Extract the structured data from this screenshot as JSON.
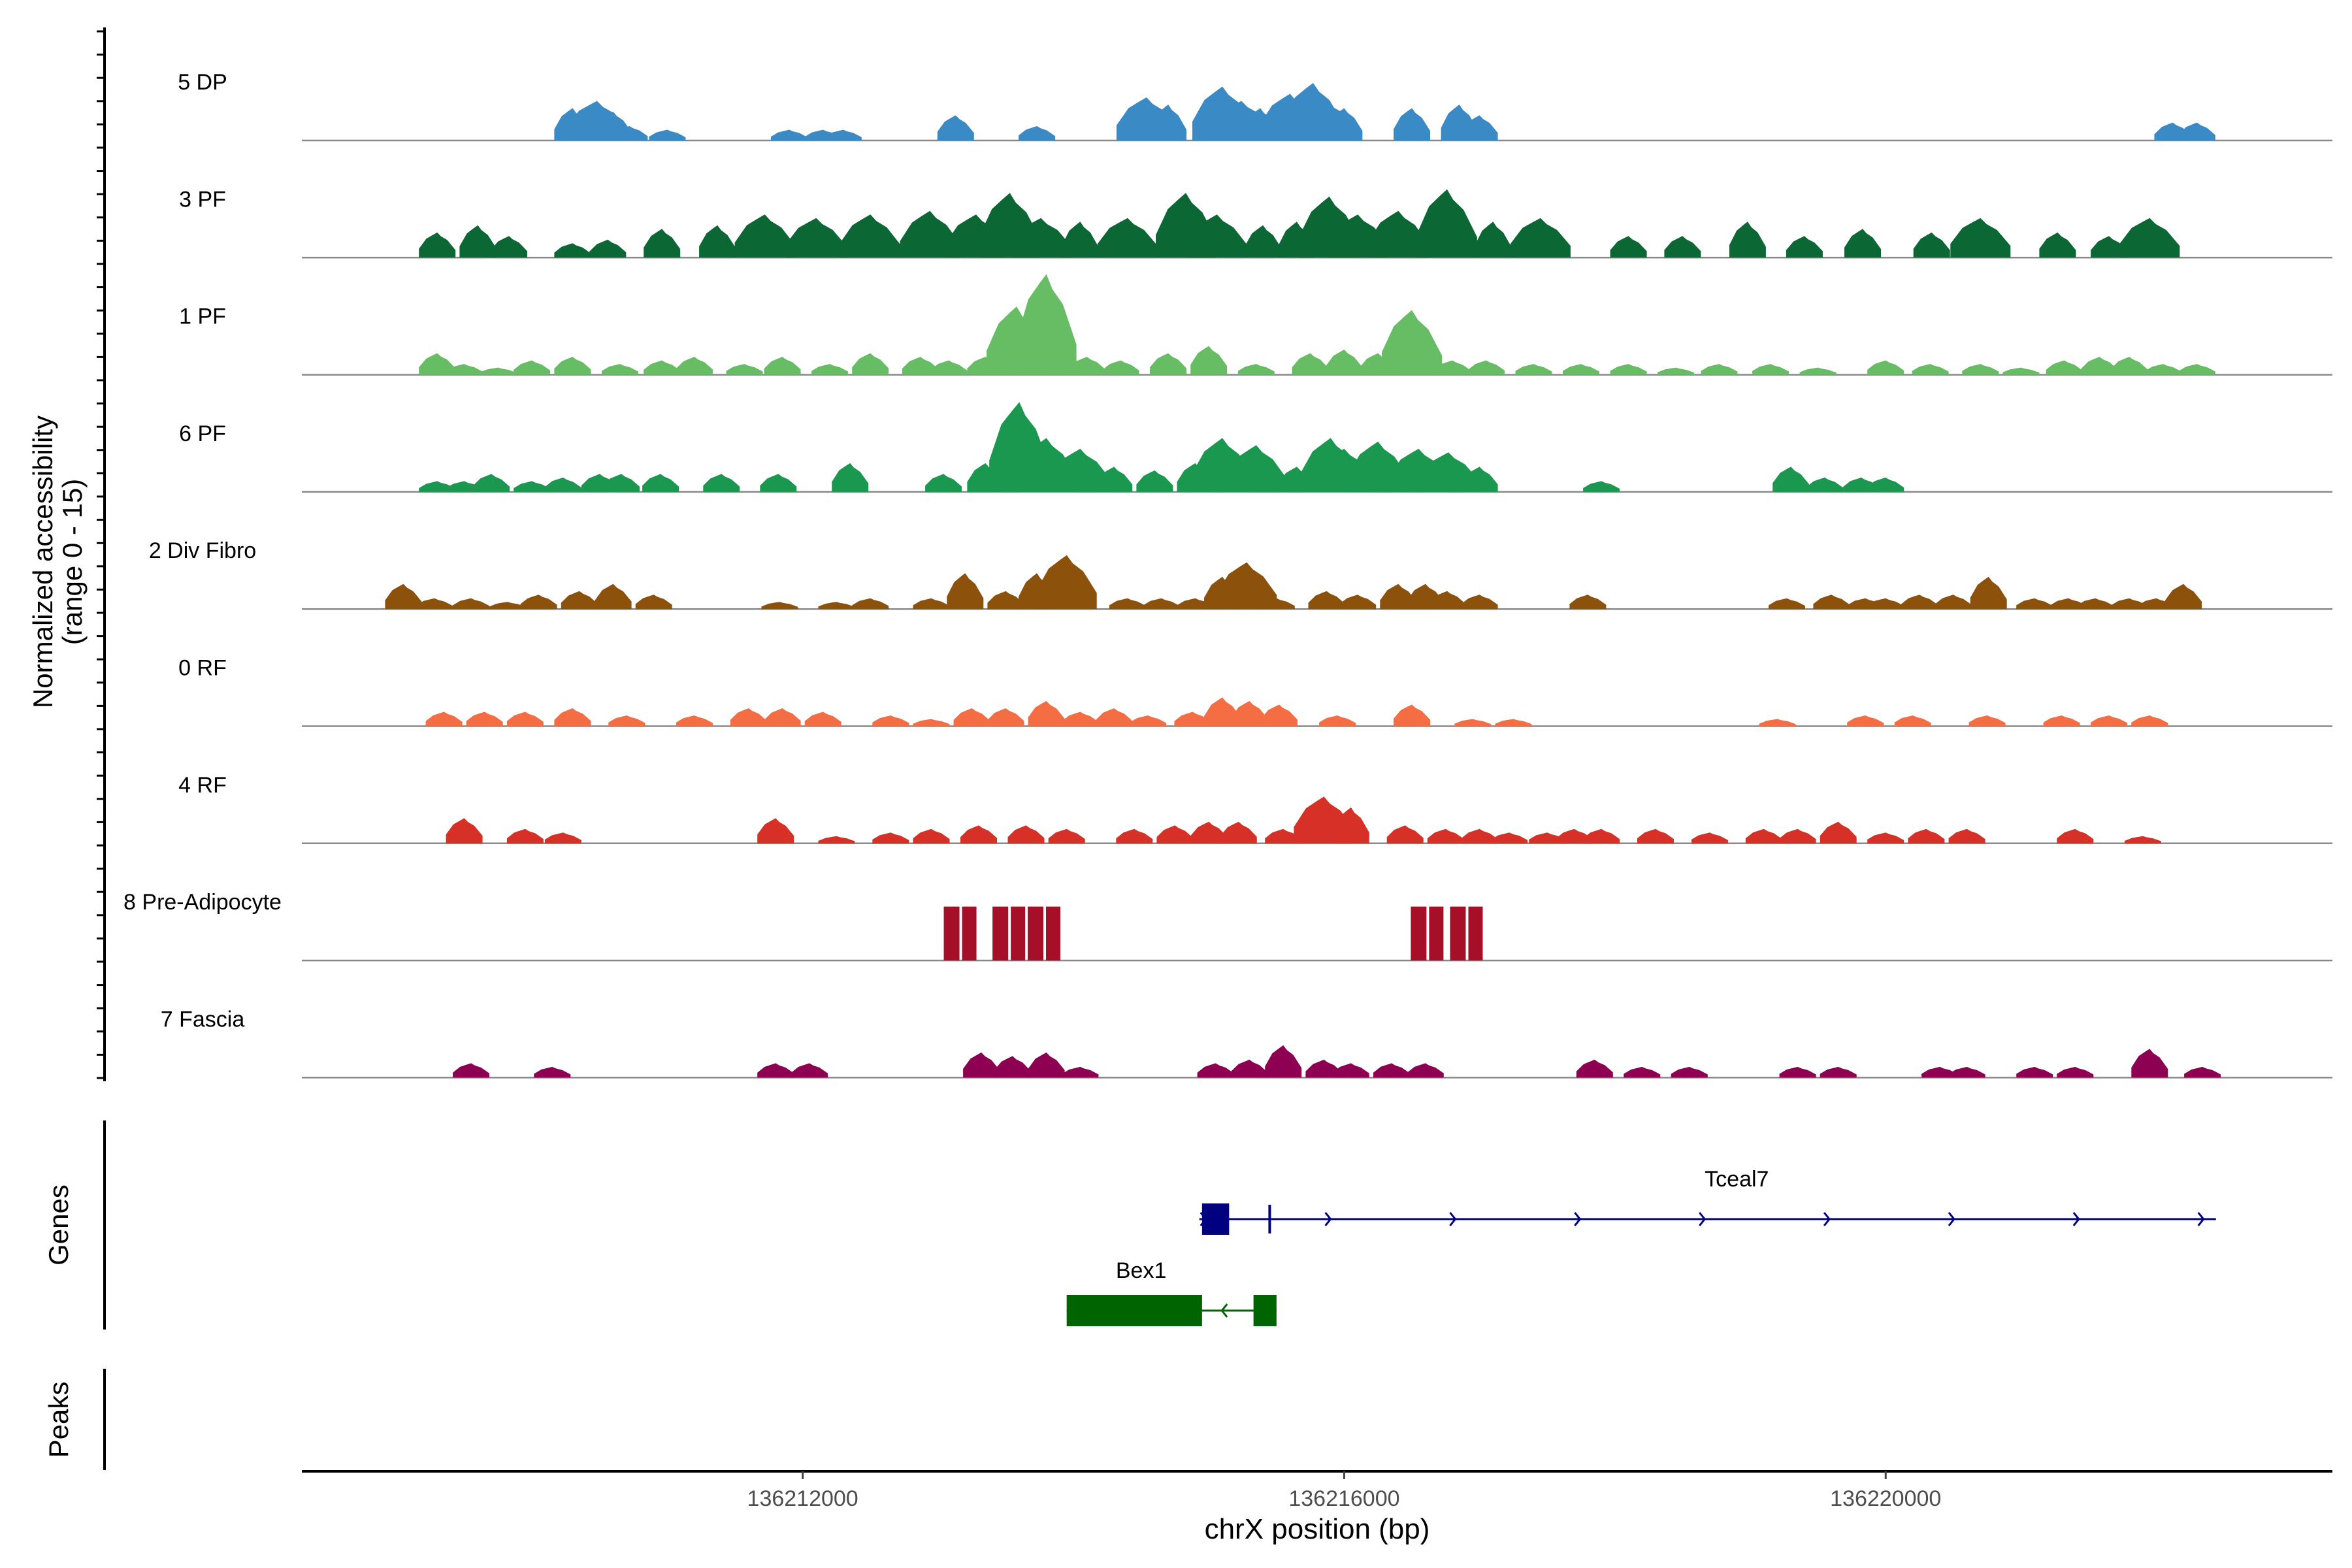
{
  "chart_data": {
    "type": "area",
    "title": "",
    "chromosome": "chrX",
    "xlabel": "chrX position (bp)",
    "ylabel": "Normalized accessibility",
    "ylabel_range": "(range 0 - 15)",
    "xlim": [
      136208300,
      136223300
    ],
    "ylim": [
      0,
      15
    ],
    "x_ticks": [
      136212000,
      136216000,
      136220000
    ],
    "x_tick_labels": [
      "136212000",
      "136216000",
      "136220000"
    ],
    "tracks": [
      {
        "name": "5 DP",
        "color": "#3A8BC5",
        "x": [
          136210300,
          136210480,
          136210600,
          136210720,
          136211000,
          136211900,
          136212150,
          136212300,
          136213130,
          136213730,
          136214540,
          136214700,
          136215100,
          136215240,
          136215380,
          136215600,
          136215770,
          136215870,
          136216000,
          136216500,
          136216850,
          136217000,
          136222120,
          136222300
        ],
        "y": [
          4.5,
          5.5,
          4.0,
          2.0,
          1.5,
          1.5,
          1.5,
          1.5,
          3.5,
          2.0,
          6.0,
          5.0,
          7.5,
          5.5,
          4.5,
          6.5,
          8.0,
          5.5,
          4.5,
          4.5,
          5.0,
          3.5,
          2.5,
          2.5
        ]
      },
      {
        "name": "3 PF",
        "color": "#0B6734",
        "x": [
          136209300,
          136209600,
          136209830,
          136210300,
          136210560,
          136210960,
          136211370,
          136211720,
          136212100,
          136212500,
          136212940,
          136213280,
          136213530,
          136213760,
          136214050,
          136214400,
          136214830,
          136215060,
          136215400,
          136215650,
          136215890,
          136216100,
          136216400,
          136216760,
          136217100,
          136217450,
          136218100,
          136218500,
          136218980,
          136219400,
          136219830,
          136220340,
          136220700,
          136221270,
          136221650,
          136221950
        ],
        "y": [
          3.5,
          4.5,
          3.0,
          2.0,
          2.5,
          4.0,
          4.5,
          6.0,
          5.5,
          6.0,
          6.5,
          6.0,
          9.0,
          5.5,
          5.0,
          5.5,
          9.0,
          6.0,
          4.5,
          5.0,
          8.5,
          6.0,
          6.5,
          9.5,
          5.0,
          5.5,
          3.0,
          3.0,
          5.0,
          3.0,
          4.0,
          3.5,
          5.5,
          3.5,
          3.0,
          5.5
        ]
      },
      {
        "name": "1 PF",
        "color": "#66BD63",
        "x": [
          136209300,
          136209500,
          136209750,
          136210000,
          136210300,
          136210650,
          136210960,
          136211200,
          136211570,
          136211850,
          136212200,
          136212500,
          136212870,
          136213080,
          136213350,
          136213580,
          136213800,
          136214100,
          136214350,
          136214700,
          136215000,
          136215350,
          136215750,
          136216000,
          136216250,
          136216500,
          136216800,
          136217050,
          136217400,
          136217750,
          136218100,
          136218450,
          136218770,
          136219150,
          136219500,
          136220000,
          136220330,
          136220700,
          136221000,
          136221320,
          136221580,
          136221800,
          136222050,
          136222300
        ],
        "y": [
          3.0,
          1.5,
          1.0,
          2.0,
          2.5,
          1.5,
          2.0,
          2.5,
          1.5,
          2.5,
          1.5,
          3.0,
          2.5,
          2.0,
          2.5,
          9.5,
          14.0,
          2.5,
          2.0,
          3.0,
          4.0,
          1.5,
          3.0,
          3.5,
          3.0,
          9.0,
          2.0,
          2.0,
          1.5,
          1.5,
          1.5,
          1.0,
          1.5,
          1.5,
          1.0,
          2.0,
          1.5,
          1.5,
          1.0,
          2.0,
          2.5,
          2.5,
          1.5,
          1.5
        ]
      },
      {
        "name": "6 PF",
        "color": "#1A9850",
        "x": [
          136209300,
          136209500,
          136209700,
          136210000,
          136210230,
          136210500,
          136210660,
          136210950,
          136211400,
          136211820,
          136212350,
          136213040,
          136213350,
          136213600,
          136213800,
          136214050,
          136214300,
          136214600,
          136214900,
          136215100,
          136215350,
          136215650,
          136215900,
          136216000,
          136216250,
          136216550,
          136216770,
          136217000,
          136217900,
          136219300,
          136219550,
          136219820,
          136220000
        ],
        "y": [
          1.5,
          1.5,
          2.5,
          1.5,
          2.0,
          2.5,
          2.5,
          2.5,
          2.5,
          2.5,
          4.0,
          2.5,
          4.0,
          12.5,
          7.5,
          6.0,
          3.5,
          3.0,
          4.0,
          7.5,
          6.5,
          3.5,
          7.5,
          6.0,
          7.0,
          6.0,
          5.5,
          3.5,
          1.5,
          3.5,
          2.0,
          2.0,
          2.0
        ]
      },
      {
        "name": "2 Div Fibro",
        "color": "#8C510A",
        "x": [
          136209050,
          136209280,
          136209550,
          136209820,
          136210050,
          136210350,
          136210600,
          136210900,
          136211830,
          136212250,
          136212500,
          136212950,
          136213200,
          136213500,
          136213730,
          136213950,
          136214400,
          136214650,
          136214900,
          136215100,
          136215280,
          136215500,
          136215870,
          136216100,
          136216400,
          136216600,
          136216760,
          136217000,
          136217800,
          136219270,
          136219600,
          136219850,
          136220000,
          136220250,
          136220500,
          136220760,
          136221100,
          136221350,
          136221550,
          136221800,
          136222000,
          136222200
        ],
        "y": [
          3.5,
          1.5,
          1.5,
          1.0,
          2.0,
          2.5,
          3.5,
          2.0,
          1.0,
          1.0,
          1.5,
          1.5,
          5.0,
          2.5,
          5.0,
          7.5,
          1.5,
          1.5,
          1.5,
          4.5,
          6.5,
          1.5,
          2.5,
          2.0,
          3.5,
          3.5,
          2.5,
          2.0,
          2.0,
          1.5,
          2.0,
          1.5,
          1.5,
          2.0,
          2.0,
          4.5,
          1.5,
          1.5,
          1.5,
          1.5,
          1.5,
          3.5
        ]
      },
      {
        "name": "0 RF",
        "color": "#F46D43",
        "x": [
          136209350,
          136209650,
          136209950,
          136210300,
          136210700,
          136211200,
          136211600,
          136211850,
          136212150,
          136212650,
          136212950,
          136213250,
          136213500,
          136213800,
          136214050,
          136214300,
          136214550,
          136214880,
          136215100,
          136215300,
          136215520,
          136215950,
          136216500,
          136216950,
          136217250,
          136219200,
          136219850,
          136220200,
          136220750,
          136221300,
          136221650,
          136221950
        ],
        "y": [
          2.0,
          2.0,
          2.0,
          2.5,
          1.5,
          1.5,
          2.5,
          2.5,
          2.0,
          1.5,
          1.0,
          2.5,
          2.5,
          3.5,
          2.0,
          2.5,
          1.5,
          2.0,
          4.0,
          3.5,
          3.0,
          1.5,
          3.0,
          1.0,
          1.0,
          1.0,
          1.5,
          1.5,
          1.5,
          1.5,
          1.5,
          1.5
        ]
      },
      {
        "name": "4 RF",
        "color": "#D73027",
        "x": [
          136209500,
          136209950,
          136210230,
          136211800,
          136212250,
          136212650,
          136212950,
          136213300,
          136213650,
          136213950,
          136214450,
          136214750,
          136215000,
          136215220,
          136215550,
          136215850,
          136216050,
          136216450,
          136216750,
          136217000,
          136217220,
          136217500,
          136217700,
          136217900,
          136218300,
          136218700,
          136219100,
          136219350,
          136219650,
          136220000,
          136220300,
          136220600,
          136221400,
          136221900
        ],
        "y": [
          3.5,
          2.0,
          1.5,
          3.5,
          1.0,
          1.5,
          2.0,
          2.5,
          2.5,
          2.0,
          2.0,
          2.5,
          3.0,
          3.0,
          2.0,
          6.5,
          5.0,
          2.5,
          2.0,
          2.0,
          1.5,
          1.5,
          2.0,
          2.0,
          2.0,
          1.5,
          2.0,
          2.0,
          3.0,
          1.5,
          2.0,
          2.0,
          2.0,
          1.0
        ]
      },
      {
        "name": "8 Pre-Adipocyte",
        "color": "#A50F28",
        "x": [
          136213100,
          136213460,
          136213720,
          136216550,
          136216840
        ],
        "y": [
          7.5,
          7.5,
          7.5,
          7.5,
          7.5
        ]
      },
      {
        "name": "7 Fascia",
        "color": "#8E0152",
        "x": [
          136209550,
          136210150,
          136211800,
          136212050,
          136213320,
          136213550,
          136213800,
          136214050,
          136215050,
          136215300,
          136215550,
          136215850,
          136216050,
          136216350,
          136216600,
          136217850,
          136218200,
          136218550,
          136219350,
          136219650,
          136220400,
          136220600,
          136221100,
          136221400,
          136221950,
          136222340
        ],
        "y": [
          2.0,
          1.5,
          2.0,
          2.0,
          3.5,
          3.0,
          3.5,
          1.5,
          2.0,
          2.5,
          4.5,
          2.5,
          2.0,
          2.0,
          2.0,
          2.5,
          1.5,
          1.5,
          1.5,
          1.5,
          1.5,
          1.5,
          1.5,
          1.5,
          4.0,
          1.5
        ]
      }
    ],
    "genes_label": "Genes",
    "genes": [
      {
        "name": "Tceal7",
        "strand": "+",
        "color": "#000080",
        "start": 136214930,
        "end": 136222440,
        "exons": [
          [
            136214950,
            136215150
          ],
          [
            136215440,
            136215450
          ]
        ]
      },
      {
        "name": "Bex1",
        "strand": "-",
        "color": "#006400",
        "start": 136213950,
        "end": 136215500,
        "exons": [
          [
            136213950,
            136214950
          ],
          [
            136215330,
            136215500
          ]
        ]
      }
    ],
    "peaks_label": "Peaks",
    "peaks": []
  }
}
